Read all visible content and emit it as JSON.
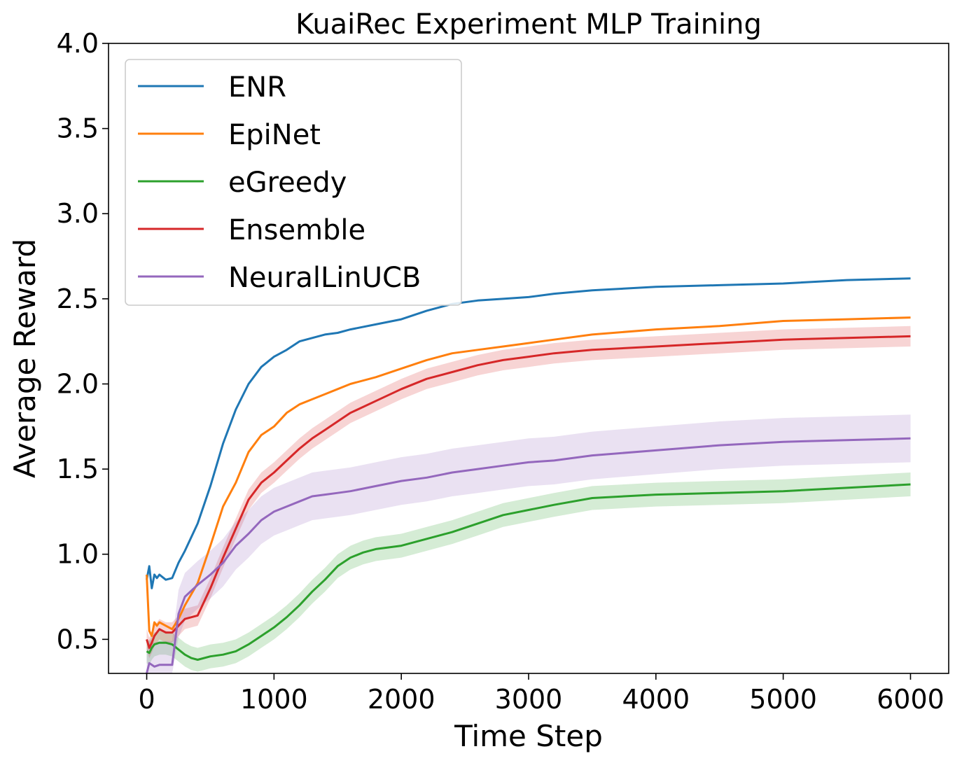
{
  "chart_data": {
    "type": "line",
    "title": "KuaiRec Experiment MLP Training",
    "xlabel": "Time Step",
    "ylabel": "Average Reward",
    "xlim": [
      -300,
      6300
    ],
    "ylim": [
      0.3,
      4.0
    ],
    "xticks": [
      0,
      1000,
      2000,
      3000,
      4000,
      5000,
      6000
    ],
    "yticks": [
      0.5,
      1.0,
      1.5,
      2.0,
      2.5,
      3.0,
      3.5,
      4.0
    ],
    "xtick_labels": [
      "0",
      "1000",
      "2000",
      "3000",
      "4000",
      "5000",
      "6000"
    ],
    "ytick_labels": [
      "0.5",
      "1.0",
      "1.5",
      "2.0",
      "2.5",
      "3.0",
      "3.5",
      "4.0"
    ],
    "grid": false,
    "legend_position": "upper-left",
    "series": [
      {
        "name": "ENR",
        "color": "#1f77b4",
        "band": 0.0,
        "x": [
          0,
          20,
          40,
          60,
          80,
          100,
          150,
          200,
          250,
          300,
          400,
          500,
          600,
          700,
          800,
          900,
          1000,
          1100,
          1200,
          1300,
          1400,
          1500,
          1600,
          1800,
          2000,
          2200,
          2400,
          2600,
          2800,
          3000,
          3200,
          3500,
          4000,
          4500,
          5000,
          5500,
          6000
        ],
        "y": [
          0.85,
          0.93,
          0.8,
          0.88,
          0.86,
          0.88,
          0.85,
          0.86,
          0.95,
          1.02,
          1.18,
          1.4,
          1.65,
          1.85,
          2.0,
          2.1,
          2.16,
          2.2,
          2.25,
          2.27,
          2.29,
          2.3,
          2.32,
          2.35,
          2.38,
          2.43,
          2.47,
          2.49,
          2.5,
          2.51,
          2.53,
          2.55,
          2.57,
          2.58,
          2.59,
          2.61,
          2.62
        ]
      },
      {
        "name": "EpiNet",
        "color": "#ff7f0e",
        "band": 0.0,
        "x": [
          0,
          20,
          40,
          60,
          80,
          100,
          150,
          200,
          250,
          300,
          400,
          500,
          600,
          700,
          800,
          900,
          1000,
          1100,
          1200,
          1300,
          1400,
          1500,
          1600,
          1800,
          2000,
          2200,
          2400,
          2600,
          2800,
          3000,
          3200,
          3500,
          4000,
          4500,
          5000,
          5500,
          6000
        ],
        "y": [
          0.88,
          0.55,
          0.52,
          0.6,
          0.58,
          0.6,
          0.58,
          0.56,
          0.62,
          0.7,
          0.83,
          1.05,
          1.28,
          1.42,
          1.6,
          1.7,
          1.75,
          1.83,
          1.88,
          1.91,
          1.94,
          1.97,
          2.0,
          2.04,
          2.09,
          2.14,
          2.18,
          2.2,
          2.22,
          2.24,
          2.26,
          2.29,
          2.32,
          2.34,
          2.37,
          2.38,
          2.39
        ]
      },
      {
        "name": "eGreedy",
        "color": "#2ca02c",
        "band": 0.07,
        "x": [
          0,
          20,
          40,
          60,
          100,
          150,
          200,
          250,
          300,
          350,
          400,
          500,
          600,
          700,
          800,
          900,
          1000,
          1100,
          1200,
          1300,
          1400,
          1500,
          1600,
          1700,
          1800,
          1900,
          2000,
          2200,
          2400,
          2600,
          2800,
          3000,
          3200,
          3500,
          4000,
          4500,
          5000,
          5500,
          6000
        ],
        "y": [
          0.43,
          0.42,
          0.45,
          0.47,
          0.48,
          0.48,
          0.47,
          0.44,
          0.41,
          0.39,
          0.38,
          0.4,
          0.41,
          0.43,
          0.47,
          0.52,
          0.57,
          0.63,
          0.7,
          0.78,
          0.85,
          0.93,
          0.98,
          1.01,
          1.03,
          1.04,
          1.05,
          1.09,
          1.13,
          1.18,
          1.23,
          1.26,
          1.29,
          1.33,
          1.35,
          1.36,
          1.37,
          1.39,
          1.41
        ]
      },
      {
        "name": "Ensemble",
        "color": "#d62728",
        "band": 0.06,
        "x": [
          0,
          20,
          40,
          60,
          80,
          100,
          150,
          200,
          250,
          300,
          400,
          500,
          600,
          700,
          800,
          900,
          1000,
          1100,
          1200,
          1300,
          1400,
          1500,
          1600,
          1800,
          2000,
          2200,
          2400,
          2600,
          2800,
          3000,
          3200,
          3500,
          4000,
          4500,
          5000,
          5500,
          6000
        ],
        "y": [
          0.5,
          0.45,
          0.48,
          0.52,
          0.54,
          0.56,
          0.54,
          0.54,
          0.58,
          0.62,
          0.64,
          0.8,
          0.98,
          1.15,
          1.32,
          1.42,
          1.48,
          1.55,
          1.62,
          1.68,
          1.73,
          1.78,
          1.83,
          1.9,
          1.97,
          2.03,
          2.07,
          2.11,
          2.14,
          2.16,
          2.18,
          2.2,
          2.22,
          2.24,
          2.26,
          2.27,
          2.28
        ]
      },
      {
        "name": "NeuralLinUCB",
        "color": "#9467bd",
        "band": 0.14,
        "x": [
          0,
          20,
          40,
          60,
          100,
          150,
          200,
          250,
          300,
          400,
          500,
          600,
          700,
          800,
          900,
          1000,
          1100,
          1200,
          1300,
          1400,
          1500,
          1600,
          1800,
          2000,
          2200,
          2400,
          2600,
          2800,
          3000,
          3200,
          3500,
          4000,
          4500,
          5000,
          5500,
          6000
        ],
        "y": [
          0.3,
          0.36,
          0.35,
          0.34,
          0.35,
          0.35,
          0.35,
          0.65,
          0.75,
          0.82,
          0.88,
          0.95,
          1.05,
          1.12,
          1.2,
          1.25,
          1.28,
          1.31,
          1.34,
          1.35,
          1.36,
          1.37,
          1.4,
          1.43,
          1.45,
          1.48,
          1.5,
          1.52,
          1.54,
          1.55,
          1.58,
          1.61,
          1.64,
          1.66,
          1.67,
          1.68
        ]
      }
    ]
  }
}
